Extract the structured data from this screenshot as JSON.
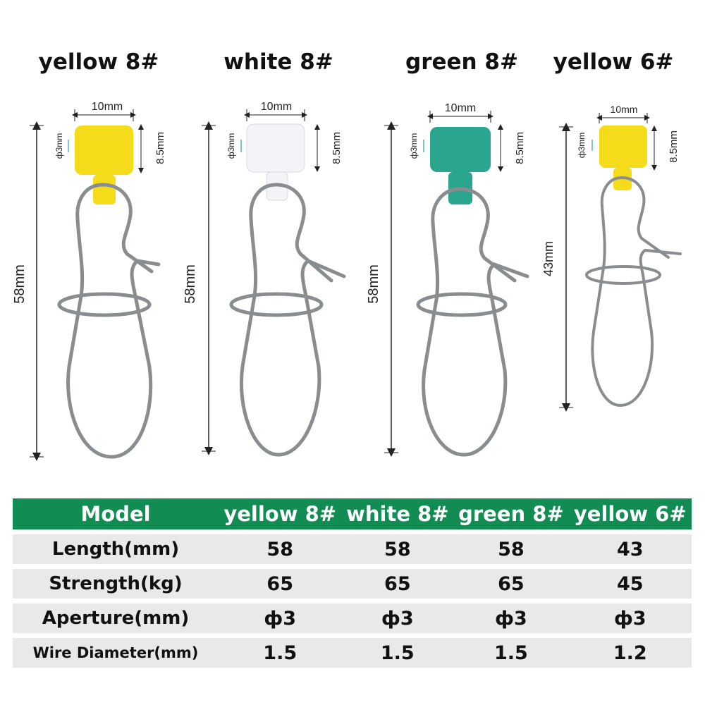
{
  "products": [
    {
      "title": "yellow 8#",
      "bead_color": "#f5dc1a",
      "length_label": "58mm",
      "bead_width_label": "10mm",
      "hole_label": "ф3mm",
      "bead_height_label": "8.5mm"
    },
    {
      "title": "white 8#",
      "bead_color": "#f4f4f8",
      "length_label": "58mm",
      "bead_width_label": "10mm",
      "hole_label": "ф3mm",
      "bead_height_label": "8.5mm"
    },
    {
      "title": "green 8#",
      "bead_color": "#2aa58e",
      "length_label": "58mm",
      "bead_width_label": "10mm",
      "hole_label": "ф3mm",
      "bead_height_label": "8.5mm"
    },
    {
      "title": "yellow 6#",
      "bead_color": "#f5dc1a",
      "length_label": "43mm",
      "bead_width_label": "10mm",
      "hole_label": "ф3mm",
      "bead_height_label": "8.5mm"
    }
  ],
  "table": {
    "header": [
      "Model",
      "yellow 8#",
      "white 8#",
      "green 8#",
      "yellow 6#"
    ],
    "rows": [
      {
        "label": "Length(mm)",
        "values": [
          "58",
          "58",
          "58",
          "43"
        ]
      },
      {
        "label": "Strength(kg)",
        "values": [
          "65",
          "65",
          "65",
          "45"
        ]
      },
      {
        "label": "Aperture(mm)",
        "values": [
          "ф3",
          "ф3",
          "ф3",
          "ф3"
        ]
      },
      {
        "label": "Wire Diameter(mm)",
        "values": [
          "1.5",
          "1.5",
          "1.5",
          "1.2"
        ]
      }
    ]
  },
  "colors": {
    "header_bg": "#118c52",
    "row_bg": "#e9e9e9",
    "metal": "#8a8d90"
  }
}
